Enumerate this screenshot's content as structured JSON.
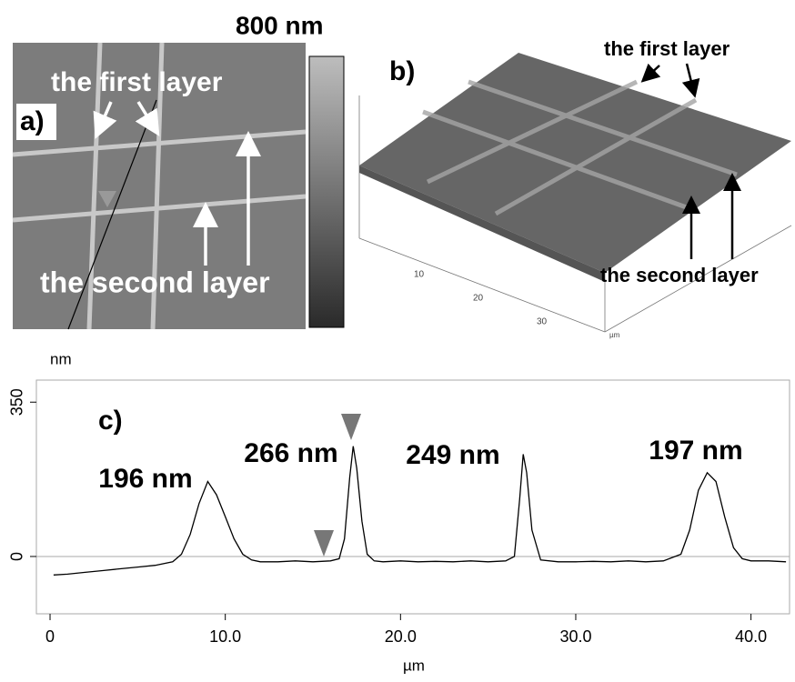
{
  "panel_a": {
    "label": "a)",
    "first_layer": "the first layer",
    "second_layer": "the second layer",
    "scale_label": "800 nm"
  },
  "panel_b": {
    "label": "b)",
    "first_layer": "the first layer",
    "second_layer": "the second layer",
    "axis_ticks": [
      "10",
      "20",
      "30"
    ],
    "axis_unit": "µm"
  },
  "chart_data": {
    "type": "line",
    "panel_label": "c)",
    "y_label": "nm",
    "x_label": "µm",
    "annotations": [
      "196 nm",
      "266 nm",
      "249 nm",
      "197 nm"
    ],
    "x": [
      0.2,
      1,
      2,
      3,
      4,
      5,
      6,
      7,
      7.5,
      8,
      8.5,
      9,
      9.5,
      10,
      10.5,
      11,
      11.5,
      12,
      13,
      14,
      15,
      16,
      16.5,
      16.8,
      17.1,
      17.3,
      17.5,
      17.8,
      18.1,
      18.5,
      19,
      20,
      21,
      22,
      23,
      24,
      25,
      26,
      26.5,
      26.8,
      27,
      27.2,
      27.5,
      28,
      29,
      30,
      31,
      32,
      33,
      34,
      35,
      36,
      36.5,
      37,
      37.5,
      38,
      38.5,
      39,
      39.5,
      40,
      41,
      42
    ],
    "values": [
      -42,
      -40,
      -36,
      -32,
      -28,
      -24,
      -20,
      -12,
      5,
      50,
      120,
      170,
      140,
      90,
      40,
      5,
      -8,
      -12,
      -12,
      -10,
      -12,
      -10,
      -5,
      40,
      180,
      250,
      200,
      80,
      5,
      -10,
      -12,
      -10,
      -12,
      -11,
      -12,
      -10,
      -12,
      -10,
      0,
      130,
      232,
      190,
      60,
      -8,
      -12,
      -12,
      -11,
      -12,
      -10,
      -12,
      -10,
      5,
      60,
      150,
      190,
      170,
      90,
      20,
      -5,
      -10,
      -10,
      -12
    ],
    "color": "#000000",
    "xlim": [
      -0.78,
      42.2
    ],
    "ylim": [
      -130,
      400
    ],
    "xticks": [
      0,
      {
        "value": 10,
        "label": "10.0"
      },
      {
        "value": 20,
        "label": "20.0"
      },
      {
        "value": 30,
        "label": "30.0"
      },
      {
        "value": 40,
        "label": "40.0"
      }
    ],
    "yticks": [
      0,
      350
    ]
  }
}
